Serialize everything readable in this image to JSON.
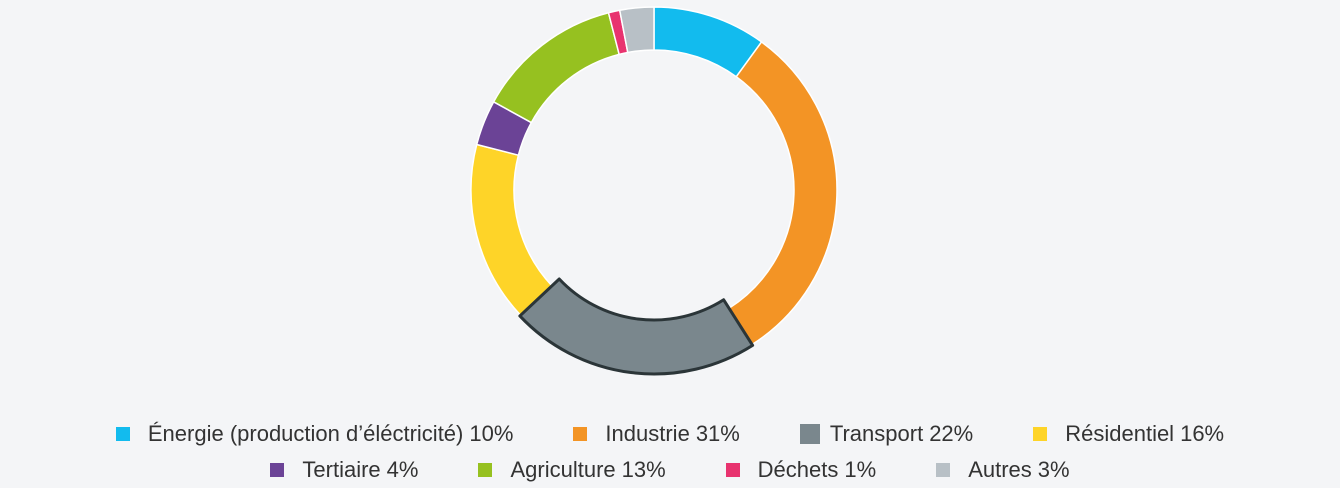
{
  "chart_data": {
    "type": "donut",
    "categories": [
      "Énergie (production d’éléctricité)",
      "Industrie",
      "Transport",
      "Résidentiel",
      "Tertiaire",
      "Agriculture",
      "Déchets",
      "Autres"
    ],
    "values": [
      10,
      31,
      22,
      16,
      4,
      13,
      1,
      3
    ],
    "value_labels": [
      "10%",
      "31%",
      "22%",
      "16%",
      "4%",
      "13%",
      "1%",
      "3%"
    ],
    "colors": [
      "#12bbee",
      "#f39425",
      "#7a878d",
      "#fed428",
      "#6b4396",
      "#96c120",
      "#e8336f",
      "#b8c0c6"
    ],
    "highlighted": "Transport",
    "legend": "bottom"
  }
}
